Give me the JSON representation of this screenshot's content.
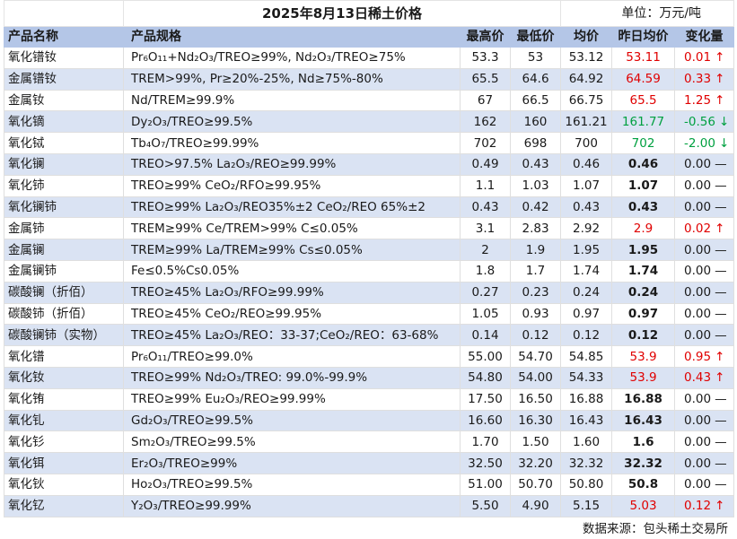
{
  "page": {
    "title": "2025年8月13日稀土价格",
    "unit": "单位：万元/吨",
    "footer": "数据来源：包头稀土交易所"
  },
  "columns": [
    "产品名称",
    "产品规格",
    "最高价",
    "最低价",
    "均价",
    "昨日均价",
    "变化量"
  ],
  "colors": {
    "header_bg": "#b4c6e7",
    "row_shade": "#dae3f3",
    "up": "#e00000",
    "down": "#00a040"
  },
  "rows": [
    {
      "name": "氧化镨钕",
      "spec": "Pr₆O₁₁+Nd₂O₃/TREO≥99%, Nd₂O₃/TREO≥75%",
      "high": "53.3",
      "low": "53",
      "avg": "53.12",
      "yest": "53.11",
      "change": "0.01",
      "trend": "up"
    },
    {
      "name": "金属镨钕",
      "spec": "TREM>99%, Pr≥20%-25%, Nd≥75%-80%",
      "high": "65.5",
      "low": "64.6",
      "avg": "64.92",
      "yest": "64.59",
      "change": "0.33",
      "trend": "up"
    },
    {
      "name": "金属钕",
      "spec": "Nd/TREM≥99.9%",
      "high": "67",
      "low": "66.5",
      "avg": "66.75",
      "yest": "65.5",
      "change": "1.25",
      "trend": "up"
    },
    {
      "name": "氧化镝",
      "spec": "Dy₂O₃/TREO≥99.5%",
      "high": "162",
      "low": "160",
      "avg": "161.21",
      "yest": "161.77",
      "change": "-0.56",
      "trend": "down"
    },
    {
      "name": "氧化铽",
      "spec": "Tb₄O₇/TREO≥99.99%",
      "high": "702",
      "low": "698",
      "avg": "700",
      "yest": "702",
      "change": "-2.00",
      "trend": "down"
    },
    {
      "name": "氧化镧",
      "spec": "TREO>97.5% La₂O₃/REO≥99.99%",
      "high": "0.49",
      "low": "0.43",
      "avg": "0.46",
      "yest": "0.46",
      "change": "0.00",
      "trend": "flat"
    },
    {
      "name": "氧化铈",
      "spec": "TREO≥99% CeO₂/RFO≥99.95%",
      "high": "1.1",
      "low": "1.03",
      "avg": "1.07",
      "yest": "1.07",
      "change": "0.00",
      "trend": "flat"
    },
    {
      "name": "氧化镧铈",
      "spec": "TREO≥99% La₂O₃/REO35%±2 CeO₂/REO 65%±2",
      "high": "0.43",
      "low": "0.42",
      "avg": "0.43",
      "yest": "0.43",
      "change": "0.00",
      "trend": "flat"
    },
    {
      "name": "金属铈",
      "spec": "TREM≥99% Ce/TREM>99% C≤0.05%",
      "high": "3.1",
      "low": "2.83",
      "avg": "2.92",
      "yest": "2.9",
      "change": "0.02",
      "trend": "up"
    },
    {
      "name": "金属镧",
      "spec": "TREM≥99% La/TREM≥99% Cs≤0.05%",
      "high": "2",
      "low": "1.9",
      "avg": "1.95",
      "yest": "1.95",
      "change": "0.00",
      "trend": "flat"
    },
    {
      "name": "金属镧铈",
      "spec": "Fe≤0.5%Cs0.05%",
      "high": "1.8",
      "low": "1.7",
      "avg": "1.74",
      "yest": "1.74",
      "change": "0.00",
      "trend": "flat"
    },
    {
      "name": "碳酸镧（折佰）",
      "spec": "TREO≥45% La₂O₃/RFO≥99.99%",
      "high": "0.27",
      "low": "0.23",
      "avg": "0.24",
      "yest": "0.24",
      "change": "0.00",
      "trend": "flat"
    },
    {
      "name": "碳酸铈（折佰）",
      "spec": "TREO≥45% CeO₂/REO≥99.95%",
      "high": "1.05",
      "low": "0.93",
      "avg": "0.97",
      "yest": "0.97",
      "change": "0.00",
      "trend": "flat"
    },
    {
      "name": "碳酸镧铈（实物）",
      "spec": "TREO≥45% La₂O₃/REO：33-37;CeO₂/REO：63-68%",
      "high": "0.14",
      "low": "0.12",
      "avg": "0.12",
      "yest": "0.12",
      "change": "0.00",
      "trend": "flat"
    },
    {
      "name": "氧化镨",
      "spec": "Pr₆O₁₁/TREO≥99.0%",
      "high": "55.00",
      "low": "54.70",
      "avg": "54.85",
      "yest": "53.9",
      "change": "0.95",
      "trend": "up"
    },
    {
      "name": "氧化钕",
      "spec": "TREO≥99% Nd₂O₃/TREO: 99.0%-99.9%",
      "high": "54.80",
      "low": "54.00",
      "avg": "54.33",
      "yest": "53.9",
      "change": "0.43",
      "trend": "up"
    },
    {
      "name": "氧化铕",
      "spec": "TREO≥99% Eu₂O₃/REO≥99.99%",
      "high": "17.50",
      "low": "16.50",
      "avg": "16.88",
      "yest": "16.88",
      "change": "0.00",
      "trend": "flat"
    },
    {
      "name": "氧化钆",
      "spec": "Gd₂O₃/TREO≥99.5%",
      "high": "16.60",
      "low": "16.30",
      "avg": "16.43",
      "yest": "16.43",
      "change": "0.00",
      "trend": "flat"
    },
    {
      "name": "氧化钐",
      "spec": "Sm₂O₃/TREO≥99.5%",
      "high": "1.70",
      "low": "1.50",
      "avg": "1.60",
      "yest": "1.6",
      "change": "0.00",
      "trend": "flat"
    },
    {
      "name": "氧化铒",
      "spec": "Er₂O₃/TREO≥99%",
      "high": "32.50",
      "low": "32.20",
      "avg": "32.32",
      "yest": "32.32",
      "change": "0.00",
      "trend": "flat"
    },
    {
      "name": "氧化钬",
      "spec": "Ho₂O₃/TREO≥99.5%",
      "high": "51.00",
      "low": "50.70",
      "avg": "50.80",
      "yest": "50.8",
      "change": "0.00",
      "trend": "flat"
    },
    {
      "name": "氧化钇",
      "spec": "Y₂O₃/TREO≥99.99%",
      "high": "5.50",
      "low": "4.90",
      "avg": "5.15",
      "yest": "5.03",
      "change": "0.12",
      "trend": "up"
    }
  ],
  "trend_glyphs": {
    "up": "↑",
    "down": "↓",
    "flat": "—"
  }
}
